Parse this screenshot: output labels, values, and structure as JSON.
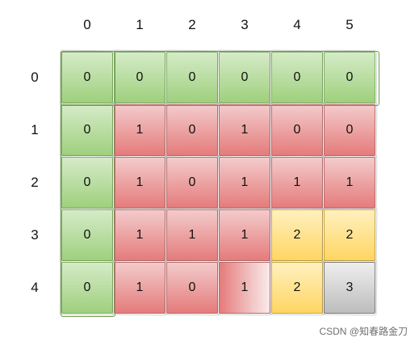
{
  "columns": [
    "0",
    "1",
    "2",
    "3",
    "4",
    "5"
  ],
  "rows": [
    "0",
    "1",
    "2",
    "3",
    "4"
  ],
  "grid": [
    [
      "0",
      "0",
      "0",
      "0",
      "0",
      "0"
    ],
    [
      "0",
      "1",
      "0",
      "1",
      "0",
      "0"
    ],
    [
      "0",
      "1",
      "0",
      "1",
      "1",
      "1"
    ],
    [
      "0",
      "1",
      "1",
      "1",
      "2",
      "2"
    ],
    [
      "0",
      "1",
      "0",
      "1",
      "2",
      "3"
    ]
  ],
  "cell_colors": [
    [
      "green",
      "green",
      "green",
      "green",
      "green",
      "green"
    ],
    [
      "green",
      "red",
      "red",
      "red",
      "red",
      "red"
    ],
    [
      "green",
      "red",
      "red",
      "red",
      "red",
      "red"
    ],
    [
      "green",
      "red",
      "red",
      "red",
      "yellow",
      "yellow"
    ],
    [
      "green",
      "red",
      "red",
      "red-fade",
      "yellow",
      "gray"
    ]
  ],
  "palette": {
    "green": "#9fd07d",
    "red": "#e57b7b",
    "yellow": "#ffd662",
    "gray": "#bdbdbd"
  },
  "watermark": "CSDN @知春路金刀"
}
